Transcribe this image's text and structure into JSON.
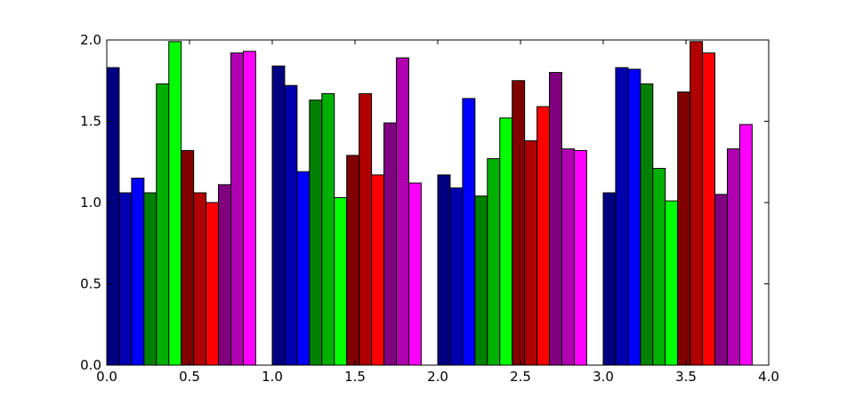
{
  "chart_data": {
    "type": "bar",
    "title": "",
    "xlabel": "",
    "ylabel": "",
    "xlim": [
      0.0,
      4.0
    ],
    "ylim": [
      0.0,
      2.0
    ],
    "grid": false,
    "bar_width": 0.075,
    "x_ticks": [
      "0.0",
      "0.5",
      "1.0",
      "1.5",
      "2.0",
      "2.5",
      "3.0",
      "3.5",
      "4.0"
    ],
    "y_ticks": [
      "0.0",
      "0.5",
      "1.0",
      "1.5",
      "2.0"
    ],
    "series": [
      {
        "color": "#000080",
        "x": [
          0.0,
          1.0,
          2.0,
          3.0
        ],
        "values": [
          1.83,
          1.84,
          1.17,
          1.06
        ]
      },
      {
        "color": "#0000b0",
        "x": [
          0.075,
          1.075,
          2.075,
          3.075
        ],
        "values": [
          1.06,
          1.72,
          1.09,
          1.83
        ]
      },
      {
        "color": "#0000ff",
        "x": [
          0.15,
          1.15,
          2.15,
          3.15
        ],
        "values": [
          1.15,
          1.19,
          1.64,
          1.82
        ]
      },
      {
        "color": "#008000",
        "x": [
          0.225,
          1.225,
          2.225,
          3.225
        ],
        "values": [
          1.06,
          1.63,
          1.04,
          1.73
        ]
      },
      {
        "color": "#00b000",
        "x": [
          0.3,
          1.3,
          2.3,
          3.3
        ],
        "values": [
          1.73,
          1.67,
          1.27,
          1.21
        ]
      },
      {
        "color": "#00ff00",
        "x": [
          0.375,
          1.375,
          2.375,
          3.375
        ],
        "values": [
          1.99,
          1.03,
          1.52,
          1.01
        ]
      },
      {
        "color": "#800000",
        "x": [
          0.45,
          1.45,
          2.45,
          3.45
        ],
        "values": [
          1.32,
          1.29,
          1.75,
          1.68
        ]
      },
      {
        "color": "#b00000",
        "x": [
          0.525,
          1.525,
          2.525,
          3.525
        ],
        "values": [
          1.06,
          1.67,
          1.38,
          1.99
        ]
      },
      {
        "color": "#ff0000",
        "x": [
          0.6,
          1.6,
          2.6,
          3.6
        ],
        "values": [
          1.0,
          1.17,
          1.59,
          1.92
        ]
      },
      {
        "color": "#800080",
        "x": [
          0.675,
          1.675,
          2.675,
          3.675
        ],
        "values": [
          1.11,
          1.49,
          1.8,
          1.05
        ]
      },
      {
        "color": "#b000b0",
        "x": [
          0.75,
          1.75,
          2.75,
          3.75
        ],
        "values": [
          1.92,
          1.89,
          1.33,
          1.33
        ]
      },
      {
        "color": "#ff00ff",
        "x": [
          0.825,
          1.825,
          2.825,
          3.825
        ],
        "values": [
          1.93,
          1.12,
          1.32,
          1.48
        ]
      }
    ]
  }
}
